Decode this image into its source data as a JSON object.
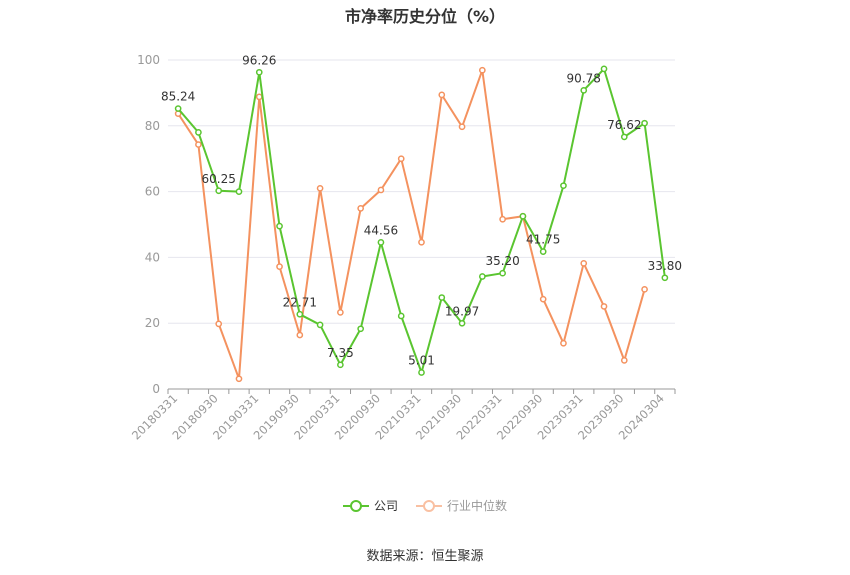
{
  "chart_data": {
    "type": "line",
    "title": "市净率历史分位（%）",
    "ylim": [
      0,
      100
    ],
    "yticks": [
      0,
      20,
      40,
      60,
      80,
      100
    ],
    "grid": true,
    "legend_position": "bottom",
    "x": [
      "20180331",
      "20180630",
      "20180930",
      "20181231",
      "20190331",
      "20190630",
      "20190930",
      "20191231",
      "20200331",
      "20200630",
      "20200930",
      "20201231",
      "20210331",
      "20210630",
      "20210930",
      "20211231",
      "20220331",
      "20220630",
      "20220930",
      "20221231",
      "20230331",
      "20230630",
      "20230930",
      "20231231",
      "20240304"
    ],
    "x_tick_labels": [
      "20180331",
      "20180930",
      "20190331",
      "20190930",
      "20200331",
      "20200930",
      "20210331",
      "20210930",
      "20220331",
      "20220930",
      "20230331",
      "20230930",
      "20240304"
    ],
    "series": [
      {
        "name": "公司",
        "color": "#5ac530",
        "values": [
          85.24,
          78,
          60.25,
          60,
          96.26,
          49.5,
          22.71,
          19.5,
          7.35,
          18.3,
          44.56,
          22.2,
          5.01,
          27.8,
          19.97,
          34.2,
          35.2,
          52.5,
          41.75,
          61.8,
          90.78,
          97.3,
          76.62,
          80.8,
          33.8
        ],
        "point_labels": {
          "0": "85.24",
          "2": "60.25",
          "4": "96.26",
          "6": "22.71",
          "8": "7.35",
          "10": "44.56",
          "12": "5.01",
          "14": "19.97",
          "16": "35.20",
          "18": "41.75",
          "20": "90.78",
          "22": "76.62",
          "24": "33.80"
        }
      },
      {
        "name": "行业中位数",
        "color": "#f4925f",
        "values": [
          83.7,
          74.3,
          19.8,
          3.1,
          88.8,
          37.2,
          16.4,
          61,
          23.3,
          54.9,
          60.5,
          70,
          44.6,
          89.4,
          79.7,
          96.9,
          51.6,
          52.5,
          27.3,
          13.9,
          38.2,
          25.1,
          8.7,
          30.3,
          null
        ]
      }
    ]
  },
  "source_text": "数据来源：恒生聚源"
}
